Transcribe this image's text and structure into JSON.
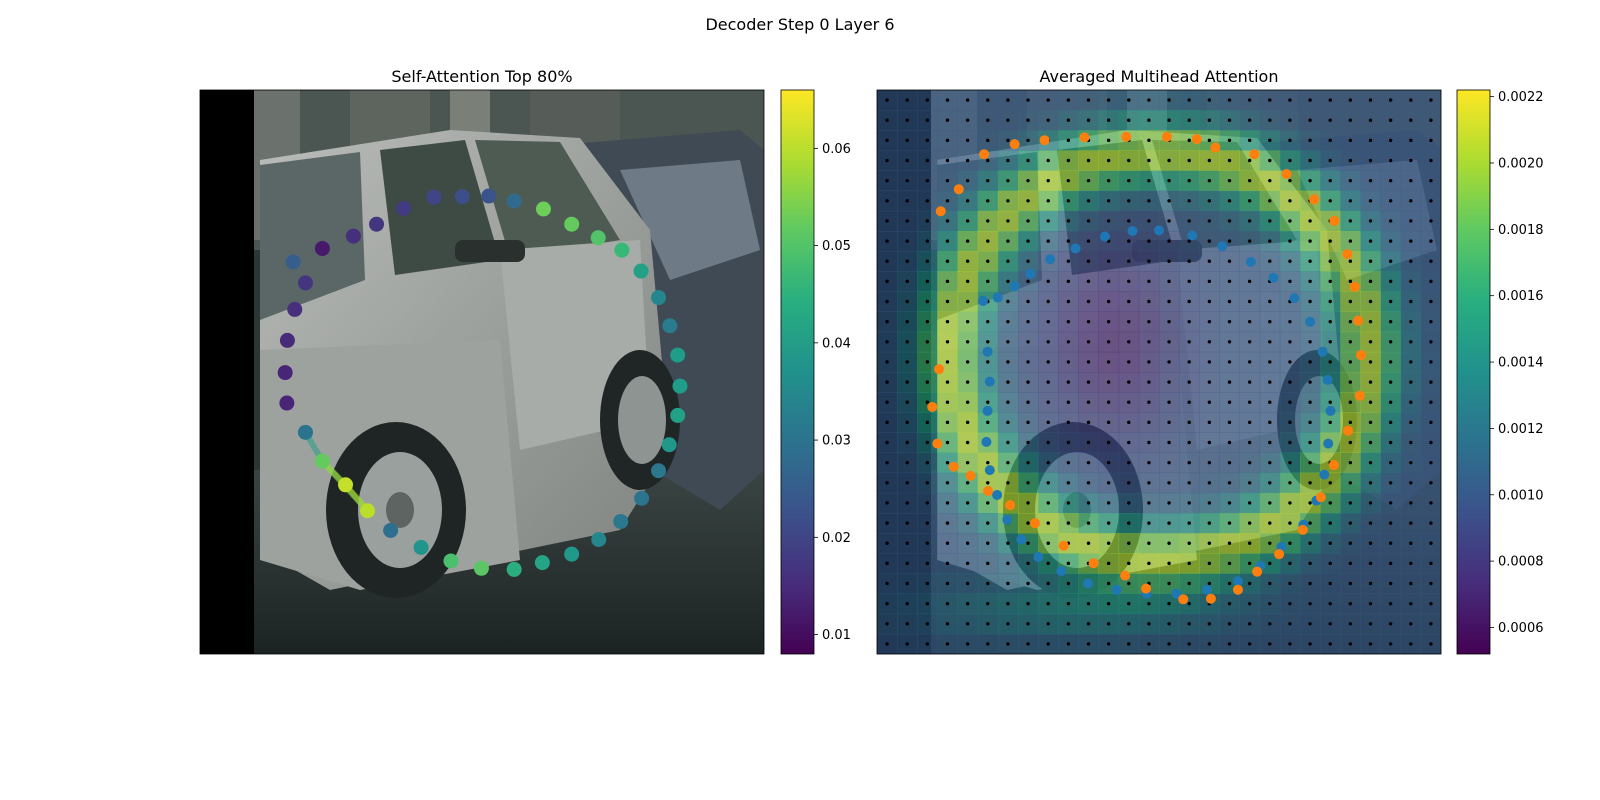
{
  "figure": {
    "suptitle": "Decoder Step 0 Layer 6"
  },
  "chart_data": [
    {
      "type": "scatter",
      "title": "Self-Attention Top 80%",
      "background": "photo of a silver hatchback car parked on a street",
      "colormap": "viridis",
      "colorbar": {
        "min": 0.008,
        "max": 0.066,
        "ticks": [
          0.01,
          0.02,
          0.03,
          0.04,
          0.05,
          0.06
        ]
      },
      "points": [
        {
          "x": 0.165,
          "y": 0.695,
          "v": 0.025
        },
        {
          "x": 0.217,
          "y": 0.719,
          "v": 0.012
        },
        {
          "x": 0.272,
          "y": 0.741,
          "v": 0.016
        },
        {
          "x": 0.313,
          "y": 0.762,
          "v": 0.017
        },
        {
          "x": 0.361,
          "y": 0.79,
          "v": 0.018
        },
        {
          "x": 0.415,
          "y": 0.81,
          "v": 0.02
        },
        {
          "x": 0.465,
          "y": 0.811,
          "v": 0.022
        },
        {
          "x": 0.512,
          "y": 0.812,
          "v": 0.023
        },
        {
          "x": 0.557,
          "y": 0.803,
          "v": 0.028
        },
        {
          "x": 0.609,
          "y": 0.789,
          "v": 0.053
        },
        {
          "x": 0.659,
          "y": 0.762,
          "v": 0.052
        },
        {
          "x": 0.706,
          "y": 0.738,
          "v": 0.05
        },
        {
          "x": 0.748,
          "y": 0.716,
          "v": 0.047
        },
        {
          "x": 0.782,
          "y": 0.679,
          "v": 0.041
        },
        {
          "x": 0.813,
          "y": 0.632,
          "v": 0.035
        },
        {
          "x": 0.833,
          "y": 0.582,
          "v": 0.032
        },
        {
          "x": 0.847,
          "y": 0.53,
          "v": 0.04
        },
        {
          "x": 0.851,
          "y": 0.475,
          "v": 0.04
        },
        {
          "x": 0.847,
          "y": 0.423,
          "v": 0.041
        },
        {
          "x": 0.832,
          "y": 0.371,
          "v": 0.039
        },
        {
          "x": 0.813,
          "y": 0.325,
          "v": 0.031
        },
        {
          "x": 0.783,
          "y": 0.276,
          "v": 0.03
        },
        {
          "x": 0.746,
          "y": 0.235,
          "v": 0.031
        },
        {
          "x": 0.707,
          "y": 0.203,
          "v": 0.035
        },
        {
          "x": 0.659,
          "y": 0.177,
          "v": 0.039
        },
        {
          "x": 0.607,
          "y": 0.162,
          "v": 0.042
        },
        {
          "x": 0.557,
          "y": 0.15,
          "v": 0.044
        },
        {
          "x": 0.499,
          "y": 0.152,
          "v": 0.051
        },
        {
          "x": 0.445,
          "y": 0.165,
          "v": 0.049
        },
        {
          "x": 0.392,
          "y": 0.189,
          "v": 0.038
        },
        {
          "x": 0.338,
          "y": 0.219,
          "v": 0.029
        },
        {
          "x": 0.297,
          "y": 0.254,
          "v": 0.06
        },
        {
          "x": 0.258,
          "y": 0.3,
          "v": 0.061
        },
        {
          "x": 0.217,
          "y": 0.342,
          "v": 0.052
        },
        {
          "x": 0.187,
          "y": 0.393,
          "v": 0.03
        },
        {
          "x": 0.154,
          "y": 0.445,
          "v": 0.014
        },
        {
          "x": 0.151,
          "y": 0.499,
          "v": 0.014
        },
        {
          "x": 0.155,
          "y": 0.556,
          "v": 0.015
        },
        {
          "x": 0.168,
          "y": 0.611,
          "v": 0.016
        },
        {
          "x": 0.187,
          "y": 0.658,
          "v": 0.017
        }
      ],
      "highlight_links": [
        [
          31,
          32
        ],
        [
          32,
          33
        ],
        [
          33,
          34
        ],
        [
          31,
          33
        ]
      ]
    },
    {
      "type": "heatmap",
      "title": "Averaged Multihead Attention",
      "background": "photo of a silver hatchback car parked on a street",
      "colormap": "viridis",
      "colorbar": {
        "min": 0.00052,
        "max": 0.00222,
        "ticks": [
          0.0006,
          0.0008,
          0.001,
          0.0012,
          0.0014,
          0.0016,
          0.0018,
          0.002,
          0.0022
        ]
      },
      "grid": {
        "rows": 28,
        "cols": 28
      },
      "series": [
        {
          "color": "#1f77b4",
          "points": [
            {
              "x": 0.188,
              "y": 0.626
            },
            {
              "x": 0.214,
              "y": 0.632
            },
            {
              "x": 0.244,
              "y": 0.652
            },
            {
              "x": 0.272,
              "y": 0.674
            },
            {
              "x": 0.307,
              "y": 0.7
            },
            {
              "x": 0.352,
              "y": 0.719
            },
            {
              "x": 0.404,
              "y": 0.74
            },
            {
              "x": 0.453,
              "y": 0.75
            },
            {
              "x": 0.5,
              "y": 0.751
            },
            {
              "x": 0.559,
              "y": 0.742
            },
            {
              "x": 0.612,
              "y": 0.723
            },
            {
              "x": 0.663,
              "y": 0.695
            },
            {
              "x": 0.703,
              "y": 0.667
            },
            {
              "x": 0.74,
              "y": 0.631
            },
            {
              "x": 0.768,
              "y": 0.589
            },
            {
              "x": 0.79,
              "y": 0.536
            },
            {
              "x": 0.799,
              "y": 0.486
            },
            {
              "x": 0.804,
              "y": 0.431
            },
            {
              "x": 0.8,
              "y": 0.373
            },
            {
              "x": 0.793,
              "y": 0.318
            },
            {
              "x": 0.779,
              "y": 0.272
            },
            {
              "x": 0.756,
              "y": 0.229
            },
            {
              "x": 0.717,
              "y": 0.19
            },
            {
              "x": 0.68,
              "y": 0.156
            },
            {
              "x": 0.64,
              "y": 0.129
            },
            {
              "x": 0.585,
              "y": 0.114
            },
            {
              "x": 0.531,
              "y": 0.107
            },
            {
              "x": 0.478,
              "y": 0.107
            },
            {
              "x": 0.425,
              "y": 0.114
            },
            {
              "x": 0.374,
              "y": 0.125
            },
            {
              "x": 0.327,
              "y": 0.147
            },
            {
              "x": 0.286,
              "y": 0.172
            },
            {
              "x": 0.256,
              "y": 0.203
            },
            {
              "x": 0.231,
              "y": 0.238
            },
            {
              "x": 0.213,
              "y": 0.282
            },
            {
              "x": 0.2,
              "y": 0.326
            },
            {
              "x": 0.194,
              "y": 0.376
            },
            {
              "x": 0.196,
              "y": 0.431
            },
            {
              "x": 0.2,
              "y": 0.483
            },
            {
              "x": 0.196,
              "y": 0.536
            }
          ]
        },
        {
          "color": "#ff7f0e",
          "points": [
            {
              "x": 0.113,
              "y": 0.785
            },
            {
              "x": 0.145,
              "y": 0.824
            },
            {
              "x": 0.19,
              "y": 0.886
            },
            {
              "x": 0.244,
              "y": 0.904
            },
            {
              "x": 0.297,
              "y": 0.911
            },
            {
              "x": 0.368,
              "y": 0.916
            },
            {
              "x": 0.442,
              "y": 0.917
            },
            {
              "x": 0.514,
              "y": 0.917
            },
            {
              "x": 0.567,
              "y": 0.913
            },
            {
              "x": 0.6,
              "y": 0.898
            },
            {
              "x": 0.669,
              "y": 0.886
            },
            {
              "x": 0.726,
              "y": 0.851
            },
            {
              "x": 0.775,
              "y": 0.806
            },
            {
              "x": 0.811,
              "y": 0.768
            },
            {
              "x": 0.834,
              "y": 0.709
            },
            {
              "x": 0.847,
              "y": 0.651
            },
            {
              "x": 0.853,
              "y": 0.591
            },
            {
              "x": 0.858,
              "y": 0.53
            },
            {
              "x": 0.856,
              "y": 0.458
            },
            {
              "x": 0.835,
              "y": 0.396
            },
            {
              "x": 0.81,
              "y": 0.335
            },
            {
              "x": 0.787,
              "y": 0.278
            },
            {
              "x": 0.755,
              "y": 0.22
            },
            {
              "x": 0.713,
              "y": 0.177
            },
            {
              "x": 0.674,
              "y": 0.146
            },
            {
              "x": 0.64,
              "y": 0.114
            },
            {
              "x": 0.592,
              "y": 0.098
            },
            {
              "x": 0.543,
              "y": 0.097
            },
            {
              "x": 0.477,
              "y": 0.116
            },
            {
              "x": 0.44,
              "y": 0.139
            },
            {
              "x": 0.384,
              "y": 0.161
            },
            {
              "x": 0.331,
              "y": 0.192
            },
            {
              "x": 0.28,
              "y": 0.232
            },
            {
              "x": 0.236,
              "y": 0.264
            },
            {
              "x": 0.197,
              "y": 0.289
            },
            {
              "x": 0.166,
              "y": 0.316
            },
            {
              "x": 0.136,
              "y": 0.332
            },
            {
              "x": 0.107,
              "y": 0.373
            },
            {
              "x": 0.098,
              "y": 0.438
            },
            {
              "x": 0.11,
              "y": 0.505
            }
          ]
        }
      ]
    }
  ]
}
